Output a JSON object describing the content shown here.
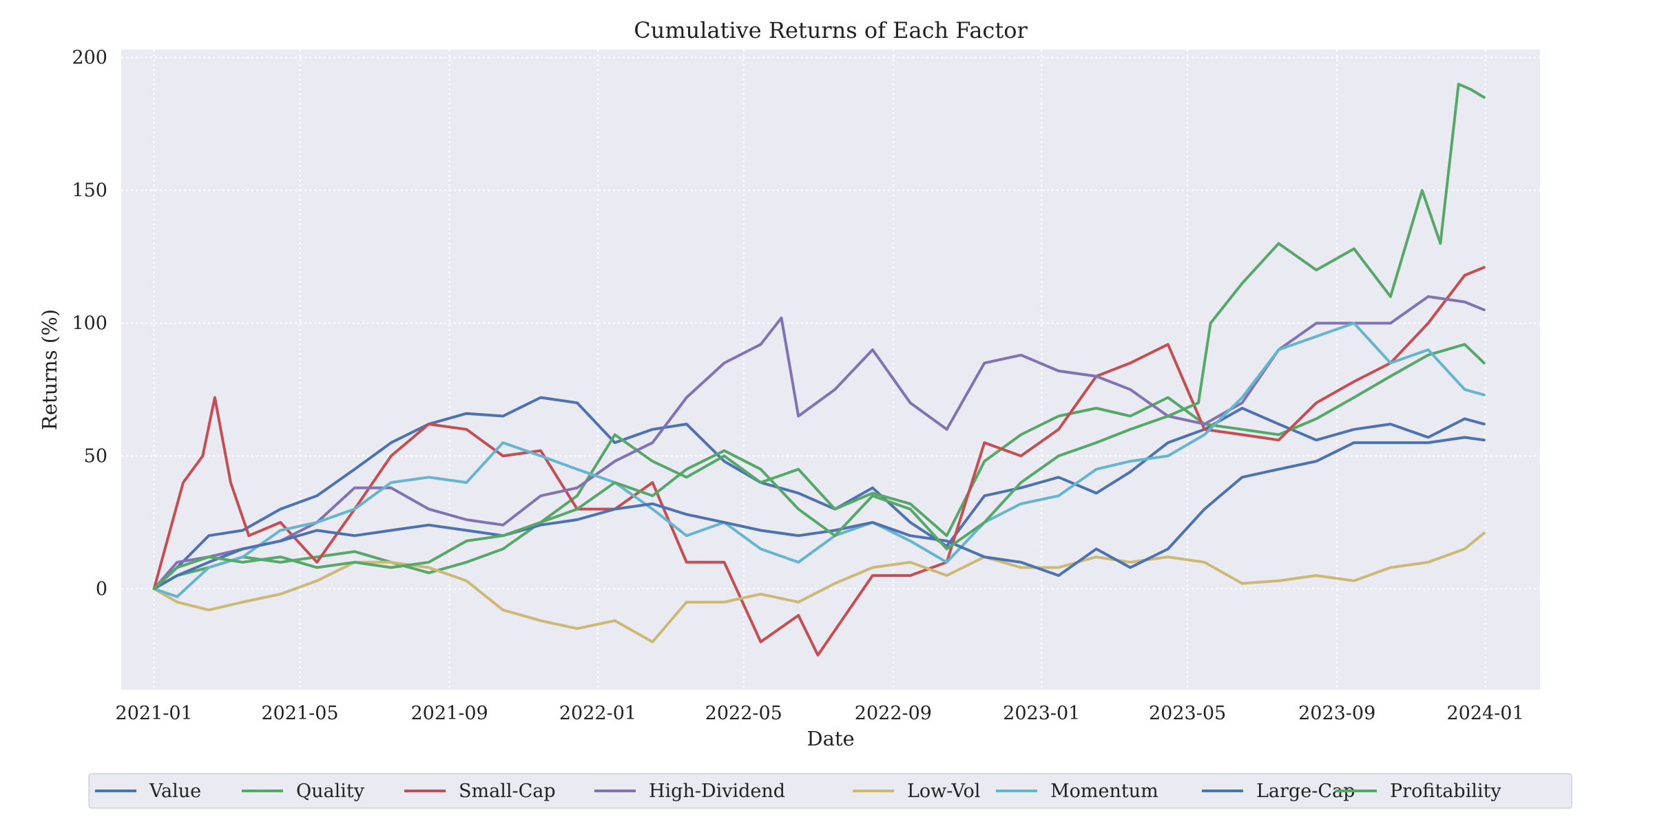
{
  "chart_data": {
    "type": "line",
    "title": "Cumulative Returns of Each Factor",
    "xlabel": "Date",
    "ylabel": "Returns (%)",
    "x_range": [
      "2020-12-05",
      "2024-02-15"
    ],
    "ylim": [
      -38,
      203
    ],
    "x_ticks": [
      "2021-01",
      "2021-05",
      "2021-09",
      "2022-01",
      "2022-05",
      "2022-09",
      "2023-01",
      "2023-05",
      "2023-09",
      "2024-01"
    ],
    "y_ticks": [
      0,
      50,
      100,
      150,
      200
    ],
    "grid": true,
    "legend_position": "bottom-center, below axis",
    "background_color": "#eaeaf2",
    "series": [
      {
        "name": "Value",
        "color": "#4c72b0",
        "x": [
          "2021-01-01",
          "2021-01-20",
          "2021-02-15",
          "2021-03-15",
          "2021-04-15",
          "2021-05-15",
          "2021-06-15",
          "2021-07-15",
          "2021-08-15",
          "2021-09-15",
          "2021-10-15",
          "2021-11-15",
          "2021-12-15",
          "2022-01-15",
          "2022-02-15",
          "2022-03-15",
          "2022-04-15",
          "2022-05-15",
          "2022-06-15",
          "2022-07-15",
          "2022-08-15",
          "2022-09-15",
          "2022-10-15",
          "2022-11-15",
          "2022-12-15",
          "2023-01-15",
          "2023-02-15",
          "2023-03-15",
          "2023-04-15",
          "2023-05-15",
          "2023-06-15",
          "2023-07-15",
          "2023-08-15",
          "2023-09-15",
          "2023-10-15",
          "2023-11-15",
          "2023-12-15",
          "2023-12-31"
        ],
        "values": [
          0,
          8,
          20,
          22,
          30,
          35,
          45,
          55,
          62,
          66,
          65,
          72,
          70,
          55,
          60,
          62,
          48,
          40,
          36,
          30,
          38,
          25,
          16,
          35,
          38,
          42,
          36,
          44,
          55,
          60,
          68,
          62,
          56,
          60,
          62,
          57,
          64,
          62
        ]
      },
      {
        "name": "Quality",
        "color": "#55a868",
        "x": [
          "2021-01-01",
          "2021-01-20",
          "2021-02-15",
          "2021-03-15",
          "2021-04-15",
          "2021-05-15",
          "2021-06-15",
          "2021-07-15",
          "2021-08-15",
          "2021-09-15",
          "2021-10-15",
          "2021-11-15",
          "2021-12-15",
          "2022-01-15",
          "2022-02-15",
          "2022-03-15",
          "2022-04-15",
          "2022-05-15",
          "2022-06-15",
          "2022-07-15",
          "2022-08-15",
          "2022-09-15",
          "2022-10-15",
          "2022-11-15",
          "2022-12-15",
          "2023-01-15",
          "2023-02-15",
          "2023-03-15",
          "2023-04-15",
          "2023-05-15",
          "2023-06-15",
          "2023-07-15",
          "2023-08-15",
          "2023-09-15",
          "2023-10-15",
          "2023-11-15",
          "2023-12-15",
          "2023-12-31"
        ],
        "values": [
          0,
          5,
          8,
          12,
          10,
          12,
          14,
          10,
          6,
          10,
          15,
          25,
          35,
          58,
          48,
          42,
          50,
          40,
          45,
          30,
          36,
          32,
          20,
          48,
          58,
          65,
          68,
          65,
          72,
          62,
          60,
          58,
          64,
          72,
          80,
          88,
          92,
          85
        ]
      },
      {
        "name": "Small-Cap",
        "color": "#c44e52",
        "x": [
          "2021-01-01",
          "2021-01-10",
          "2021-01-25",
          "2021-02-10",
          "2021-02-20",
          "2021-03-05",
          "2021-03-20",
          "2021-04-15",
          "2021-05-15",
          "2021-06-15",
          "2021-07-15",
          "2021-08-15",
          "2021-09-15",
          "2021-10-15",
          "2021-11-15",
          "2021-12-15",
          "2022-01-15",
          "2022-02-15",
          "2022-03-15",
          "2022-04-15",
          "2022-05-15",
          "2022-06-15",
          "2022-07-01",
          "2022-08-15",
          "2022-09-15",
          "2022-10-15",
          "2022-11-15",
          "2022-12-15",
          "2023-01-15",
          "2023-02-15",
          "2023-03-15",
          "2023-04-15",
          "2023-05-15",
          "2023-06-15",
          "2023-07-15",
          "2023-08-15",
          "2023-09-15",
          "2023-10-15",
          "2023-11-15",
          "2023-12-15",
          "2023-12-31"
        ],
        "values": [
          0,
          15,
          40,
          50,
          72,
          40,
          20,
          25,
          10,
          30,
          50,
          62,
          60,
          50,
          52,
          30,
          30,
          40,
          10,
          10,
          -20,
          -10,
          -25,
          5,
          5,
          10,
          55,
          50,
          60,
          80,
          85,
          92,
          60,
          58,
          56,
          70,
          78,
          85,
          100,
          118,
          121
        ]
      },
      {
        "name": "High-Dividend",
        "color": "#8172b2",
        "x": [
          "2021-01-01",
          "2021-01-20",
          "2021-02-15",
          "2021-03-15",
          "2021-04-15",
          "2021-05-15",
          "2021-06-15",
          "2021-07-15",
          "2021-08-15",
          "2021-09-15",
          "2021-10-15",
          "2021-11-15",
          "2021-12-15",
          "2022-01-15",
          "2022-02-15",
          "2022-03-15",
          "2022-04-15",
          "2022-05-15",
          "2022-06-01",
          "2022-06-15",
          "2022-07-15",
          "2022-08-15",
          "2022-09-15",
          "2022-10-15",
          "2022-11-15",
          "2022-12-15",
          "2023-01-15",
          "2023-02-15",
          "2023-03-15",
          "2023-04-15",
          "2023-05-15",
          "2023-06-15",
          "2023-07-15",
          "2023-08-15",
          "2023-09-15",
          "2023-10-15",
          "2023-11-15",
          "2023-12-15",
          "2023-12-31"
        ],
        "values": [
          0,
          10,
          12,
          15,
          18,
          25,
          38,
          38,
          30,
          26,
          24,
          35,
          38,
          48,
          55,
          72,
          85,
          92,
          102,
          65,
          75,
          90,
          70,
          60,
          85,
          88,
          82,
          80,
          75,
          65,
          62,
          70,
          90,
          100,
          100,
          100,
          110,
          108,
          105
        ]
      },
      {
        "name": "Low-Vol",
        "color": "#ccb974",
        "x": [
          "2021-01-01",
          "2021-01-20",
          "2021-02-15",
          "2021-03-15",
          "2021-04-15",
          "2021-05-15",
          "2021-06-15",
          "2021-07-15",
          "2021-08-15",
          "2021-09-15",
          "2021-10-15",
          "2021-11-15",
          "2021-12-15",
          "2022-01-15",
          "2022-02-15",
          "2022-03-15",
          "2022-04-15",
          "2022-05-15",
          "2022-06-15",
          "2022-07-15",
          "2022-08-15",
          "2022-09-15",
          "2022-10-15",
          "2022-11-15",
          "2022-12-15",
          "2023-01-15",
          "2023-02-15",
          "2023-03-15",
          "2023-04-15",
          "2023-05-15",
          "2023-06-15",
          "2023-07-15",
          "2023-08-15",
          "2023-09-15",
          "2023-10-15",
          "2023-11-15",
          "2023-12-15",
          "2023-12-31"
        ],
        "values": [
          0,
          -5,
          -8,
          -5,
          -2,
          3,
          10,
          10,
          8,
          3,
          -8,
          -12,
          -15,
          -12,
          -20,
          -5,
          -5,
          -2,
          -5,
          2,
          8,
          10,
          5,
          12,
          8,
          8,
          12,
          10,
          12,
          10,
          2,
          3,
          5,
          3,
          8,
          10,
          15,
          21
        ]
      },
      {
        "name": "Momentum",
        "color": "#64b5cd",
        "x": [
          "2021-01-01",
          "2021-01-20",
          "2021-02-15",
          "2021-03-15",
          "2021-04-15",
          "2021-05-15",
          "2021-06-15",
          "2021-07-15",
          "2021-08-15",
          "2021-09-15",
          "2021-10-15",
          "2021-11-15",
          "2021-12-15",
          "2022-01-15",
          "2022-02-15",
          "2022-03-15",
          "2022-04-15",
          "2022-05-15",
          "2022-06-15",
          "2022-07-15",
          "2022-08-15",
          "2022-09-15",
          "2022-10-15",
          "2022-11-15",
          "2022-12-15",
          "2023-01-15",
          "2023-02-15",
          "2023-03-15",
          "2023-04-15",
          "2023-05-15",
          "2023-06-15",
          "2023-07-15",
          "2023-08-15",
          "2023-09-15",
          "2023-10-15",
          "2023-11-15",
          "2023-12-15",
          "2023-12-31"
        ],
        "values": [
          0,
          -3,
          8,
          12,
          22,
          25,
          30,
          40,
          42,
          40,
          55,
          50,
          45,
          40,
          30,
          20,
          25,
          15,
          10,
          20,
          25,
          18,
          10,
          25,
          32,
          35,
          45,
          48,
          50,
          58,
          72,
          90,
          95,
          100,
          85,
          90,
          75,
          73
        ]
      },
      {
        "name": "Large-Cap",
        "color": "#4c72b0",
        "x": [
          "2021-01-01",
          "2021-01-20",
          "2021-02-15",
          "2021-03-15",
          "2021-04-15",
          "2021-05-15",
          "2021-06-15",
          "2021-07-15",
          "2021-08-15",
          "2021-09-15",
          "2021-10-15",
          "2021-11-15",
          "2021-12-15",
          "2022-01-15",
          "2022-02-15",
          "2022-03-15",
          "2022-04-15",
          "2022-05-15",
          "2022-06-15",
          "2022-07-15",
          "2022-08-15",
          "2022-09-15",
          "2022-10-15",
          "2022-11-15",
          "2022-12-15",
          "2023-01-15",
          "2023-02-15",
          "2023-03-15",
          "2023-04-15",
          "2023-05-15",
          "2023-06-15",
          "2023-07-15",
          "2023-08-15",
          "2023-09-15",
          "2023-10-15",
          "2023-11-15",
          "2023-12-15",
          "2023-12-31"
        ],
        "values": [
          0,
          5,
          10,
          15,
          18,
          22,
          20,
          22,
          24,
          22,
          20,
          24,
          26,
          30,
          32,
          28,
          25,
          22,
          20,
          22,
          25,
          20,
          18,
          12,
          10,
          5,
          15,
          8,
          15,
          30,
          42,
          45,
          48,
          55,
          55,
          55,
          57,
          56
        ]
      },
      {
        "name": "Profitability",
        "color": "#55a868",
        "x": [
          "2021-01-01",
          "2021-01-20",
          "2021-02-15",
          "2021-03-15",
          "2021-04-15",
          "2021-05-15",
          "2021-06-15",
          "2021-07-15",
          "2021-08-15",
          "2021-09-15",
          "2021-10-15",
          "2021-11-15",
          "2021-12-15",
          "2022-01-15",
          "2022-02-15",
          "2022-03-15",
          "2022-04-15",
          "2022-05-15",
          "2022-06-15",
          "2022-07-15",
          "2022-08-15",
          "2022-09-15",
          "2022-10-15",
          "2022-11-15",
          "2022-12-15",
          "2023-01-15",
          "2023-02-15",
          "2023-03-15",
          "2023-04-15",
          "2023-05-10",
          "2023-05-20",
          "2023-06-15",
          "2023-07-15",
          "2023-08-15",
          "2023-09-15",
          "2023-10-15",
          "2023-11-10",
          "2023-11-25",
          "2023-12-10",
          "2023-12-20",
          "2023-12-31"
        ],
        "values": [
          0,
          8,
          12,
          10,
          12,
          8,
          10,
          8,
          10,
          18,
          20,
          25,
          30,
          40,
          35,
          45,
          52,
          45,
          30,
          20,
          35,
          30,
          15,
          25,
          40,
          50,
          55,
          60,
          65,
          70,
          100,
          115,
          130,
          120,
          128,
          110,
          150,
          130,
          190,
          188,
          185
        ]
      }
    ]
  }
}
